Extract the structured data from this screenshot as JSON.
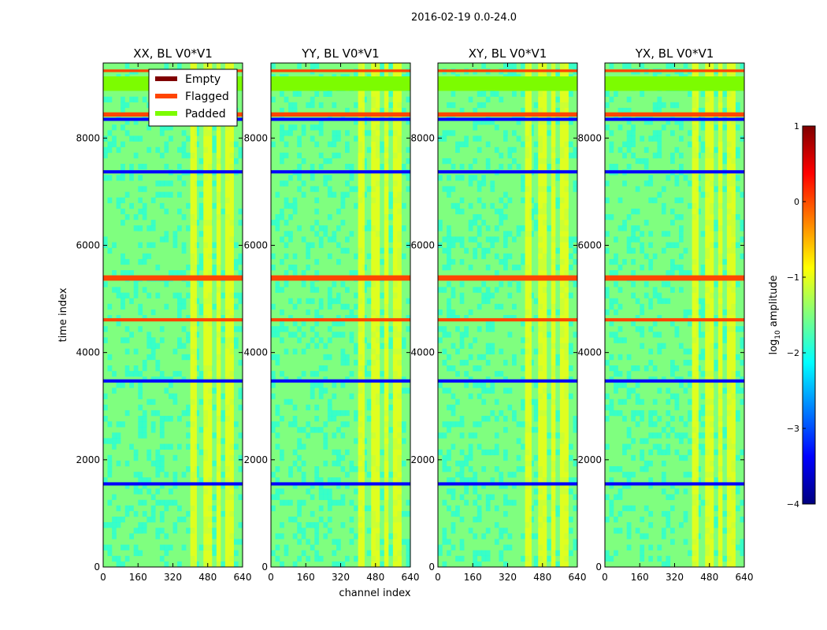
{
  "figure": {
    "suptitle": "2016-02-19 0.0-24.0"
  },
  "colors": {
    "jet": [
      "#00007f",
      "#0000ff",
      "#007fff",
      "#00ffff",
      "#7fff7f",
      "#ffff00",
      "#ff7f00",
      "#ff0000",
      "#7f0000"
    ],
    "empty": "#800000",
    "flagged": "#ff4500",
    "padded": "#7cfc00"
  },
  "chart_data": {
    "type": "heatmap",
    "xlabel": "channel index",
    "ylabel": "time index",
    "xlim": [
      0,
      640
    ],
    "ylim": [
      0,
      9400
    ],
    "xticks": [
      0,
      160,
      320,
      480,
      640
    ],
    "yticks": [
      0,
      2000,
      4000,
      6000,
      8000
    ],
    "panels": [
      {
        "title": "XX, BL V0*V1",
        "pol": "XX"
      },
      {
        "title": "YY, BL V0*V1",
        "pol": "YY"
      },
      {
        "title": "XY, BL V0*V1",
        "pol": "XY"
      },
      {
        "title": "YX, BL V0*V1",
        "pol": "YX"
      }
    ],
    "legend": {
      "placement": "top-left of first panel",
      "entries": [
        {
          "label": "Empty",
          "color": "#800000"
        },
        {
          "label": "Flagged",
          "color": "#ff4500"
        },
        {
          "label": "Padded",
          "color": "#7cfc00"
        }
      ]
    },
    "colorbar": {
      "label": "log10 amplitude",
      "label_main": "log",
      "label_sub": "10",
      "label_rest": " amplitude",
      "range": [
        -4,
        1
      ],
      "ticks": [
        1,
        0,
        -1,
        -2,
        -3,
        -4
      ],
      "ticklabels": [
        "1",
        "0",
        "−1",
        "−2",
        "−3",
        "−4"
      ]
    },
    "flagged_rows": [
      {
        "start": 9230,
        "end": 9280
      },
      {
        "start": 8400,
        "end": 8480
      },
      {
        "start": 5340,
        "end": 5440
      },
      {
        "start": 4580,
        "end": 4640
      }
    ],
    "empty_rows": [
      {
        "start": 8320,
        "end": 8380
      },
      {
        "start": 7340,
        "end": 7400
      },
      {
        "start": 3440,
        "end": 3500
      },
      {
        "start": 1520,
        "end": 1580
      }
    ],
    "padded_rows": [
      {
        "start": 8880,
        "end": 9150
      }
    ],
    "bright_channels": [
      {
        "start": 400,
        "end": 430
      },
      {
        "start": 460,
        "end": 500
      },
      {
        "start": 520,
        "end": 540
      },
      {
        "start": 560,
        "end": 600
      }
    ],
    "median_log_amplitude": -1.8,
    "rfi_log_amplitude": -0.7
  }
}
